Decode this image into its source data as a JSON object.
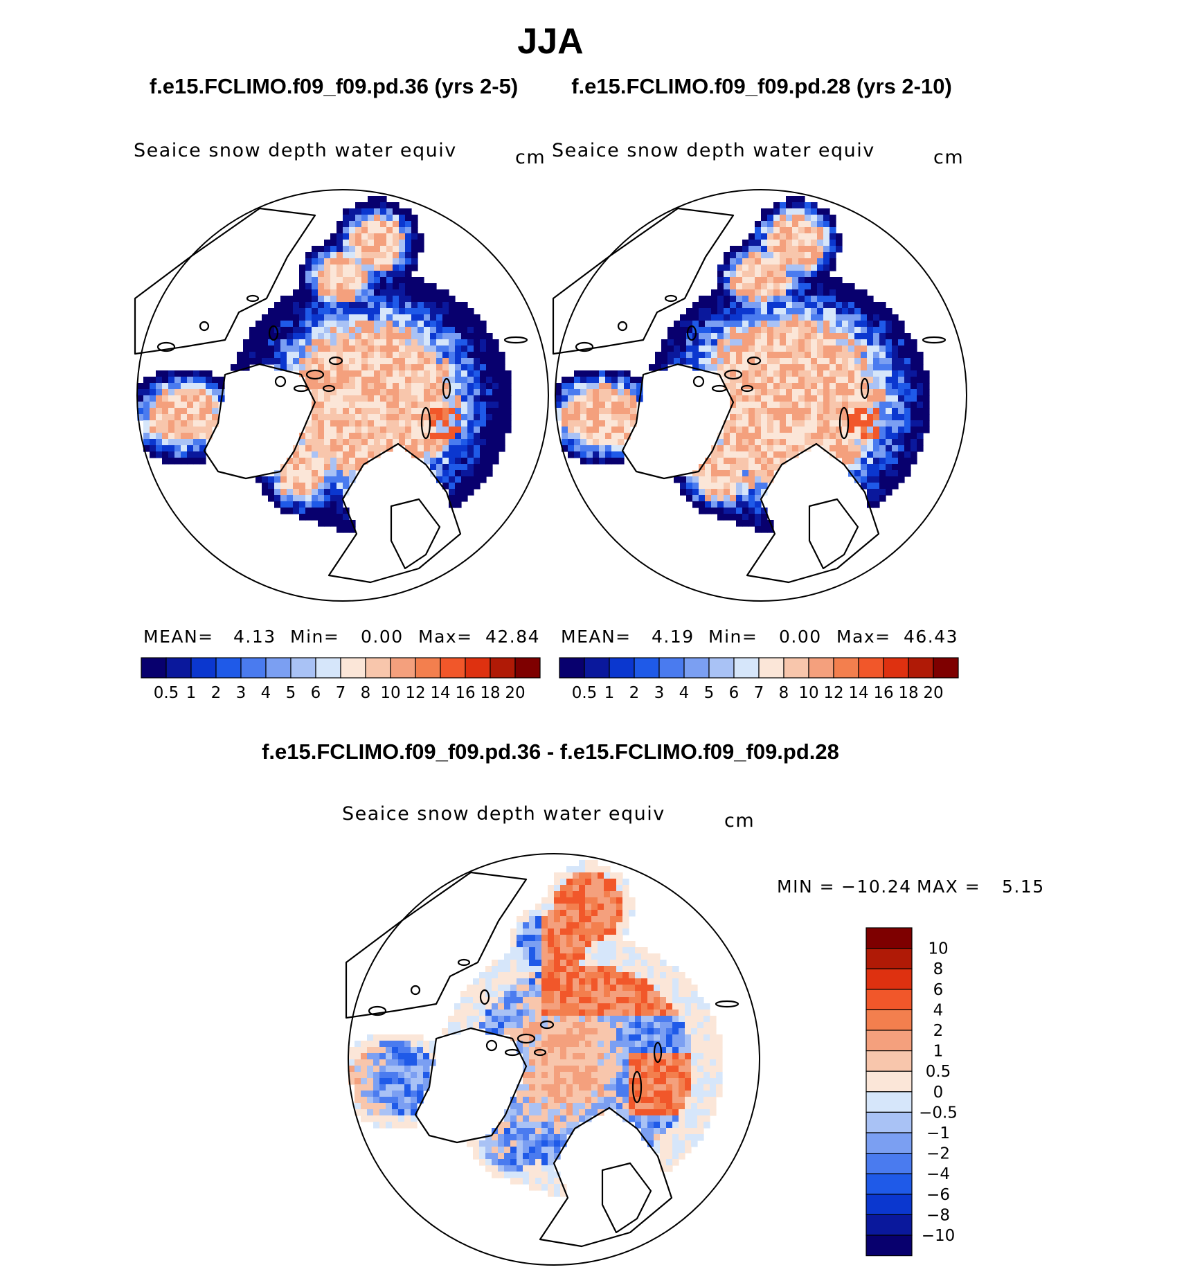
{
  "page": {
    "title": "JJA",
    "case1_header": "f.e15.FCLIMO.f09_f09.pd.36 (yrs 2-5)",
    "case2_header": "f.e15.FCLIMO.f09_f09.pd.28 (yrs 2-10)",
    "diff_header": "f.e15.FCLIMO.f09_f09.pd.36 - f.e15.FCLIMO.f09_f09.pd.28"
  },
  "chart_data": [
    {
      "type": "heatmap",
      "projection": "north-polar-stereographic",
      "panel": "case1",
      "variable_label": "Seaice snow depth water equiv",
      "units": "cm",
      "stats": {
        "mean_label": "MEAN=",
        "mean": "4.13",
        "min_label": "Min=",
        "min": "0.00",
        "max_label": "Max=",
        "max": "42.84"
      },
      "colorbar": {
        "levels": [
          "0.5",
          "1",
          "2",
          "3",
          "4",
          "5",
          "6",
          "7",
          "8",
          "10",
          "12",
          "14",
          "16",
          "18",
          "20"
        ],
        "colors": [
          "#08006e",
          "#0a189c",
          "#0b37cf",
          "#1f5ae8",
          "#4a7bef",
          "#7b9ff2",
          "#a9c2f5",
          "#d6e6fa",
          "#fbe6d8",
          "#f8c6ac",
          "#f4a07d",
          "#f37f4e",
          "#f1572a",
          "#de3110",
          "#b01a06",
          "#7e0000"
        ]
      }
    },
    {
      "type": "heatmap",
      "projection": "north-polar-stereographic",
      "panel": "case2",
      "variable_label": "Seaice snow depth water equiv",
      "units": "cm",
      "stats": {
        "mean_label": "MEAN=",
        "mean": "4.19",
        "min_label": "Min=",
        "min": "0.00",
        "max_label": "Max=",
        "max": "46.43"
      },
      "colorbar": {
        "levels": [
          "0.5",
          "1",
          "2",
          "3",
          "4",
          "5",
          "6",
          "7",
          "8",
          "10",
          "12",
          "14",
          "16",
          "18",
          "20"
        ],
        "colors": [
          "#08006e",
          "#0a189c",
          "#0b37cf",
          "#1f5ae8",
          "#4a7bef",
          "#7b9ff2",
          "#a9c2f5",
          "#d6e6fa",
          "#fbe6d8",
          "#f8c6ac",
          "#f4a07d",
          "#f37f4e",
          "#f1572a",
          "#de3110",
          "#b01a06",
          "#7e0000"
        ]
      }
    },
    {
      "type": "heatmap",
      "projection": "north-polar-stereographic",
      "panel": "difference",
      "variable_label": "Seaice snow depth water equiv",
      "units": "cm",
      "stats_text": {
        "min_label": "MIN =",
        "min": "−10.24",
        "max_label": "MAX =",
        "max": "5.15"
      },
      "colorbar": {
        "orientation": "vertical",
        "levels": [
          "10",
          "8",
          "6",
          "4",
          "2",
          "1",
          "0.5",
          "0",
          "−0.5",
          "−1",
          "−2",
          "−4",
          "−6",
          "−8",
          "−10"
        ],
        "colors": [
          "#7e0000",
          "#b01a06",
          "#de3110",
          "#f1572a",
          "#f37f4e",
          "#f4a07d",
          "#f8c6ac",
          "#fbe6d8",
          "#d6e6fa",
          "#a9c2f5",
          "#7b9ff2",
          "#4a7bef",
          "#1f5ae8",
          "#0b37cf",
          "#0a189c",
          "#08006e"
        ]
      }
    }
  ]
}
